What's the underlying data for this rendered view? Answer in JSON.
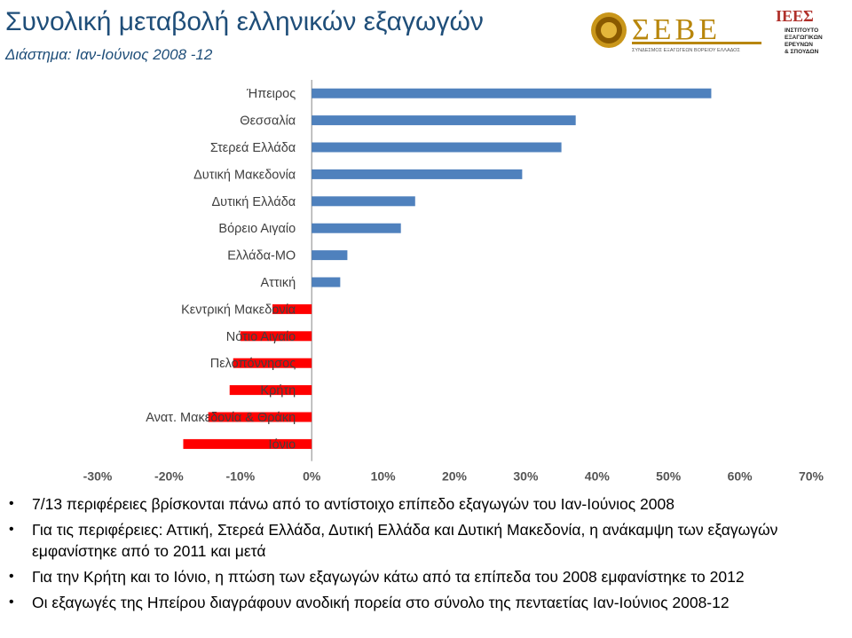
{
  "header": {
    "title": "Συνολική μεταβολή ελληνικών εξαγωγών",
    "subtitle": "Διάστημα: Ιαν-Ιούνιος 2008 -12"
  },
  "logos": {
    "seve": {
      "name": "ΣΕΒΕ",
      "tagline": "ΣΥΝΔΕΣΜΟΣ ΕΞΑΓΩΓΕΩΝ ΒΟΡΕΙΟΥ ΕΛΛΑΔΟΣ",
      "icon": "coin-emblem-icon"
    },
    "iee": {
      "mark": "ΙΕΕΣ",
      "lines": [
        "ΙΝΣΤΙΤΟΥΤΟ",
        "ΕΞΑΓΩΓΙΚΩΝ",
        "ΕΡΕΥΝΩΝ",
        "& ΣΠΟΥΔΩΝ"
      ]
    }
  },
  "colors": {
    "positive_bar": "#4f81bd",
    "negative_bar": "#ff0000",
    "title": "#1f4e79",
    "label": "#404040"
  },
  "chart_data": {
    "type": "bar",
    "orientation": "horizontal",
    "categories": [
      "Ήπειρος",
      "Θεσσαλία",
      "Στερεά Ελλάδα",
      "Δυτική Μακεδονία",
      "Δυτική Ελλάδα",
      "Βόρειο Αιγαίο",
      "Ελλάδα-ΜΟ",
      "Αττική",
      "Κεντρική Μακεδονία",
      "Νότιο Αιγαίο",
      "Πελοπόννησος",
      "Κρήτη",
      "Ανατ. Μακεδονία & Θράκη",
      "Ιόνιο"
    ],
    "values": [
      56,
      37,
      35,
      29.5,
      14.5,
      12.5,
      5,
      4,
      -5.5,
      -10,
      -11,
      -11.5,
      -14.5,
      -18
    ],
    "xlim": [
      -30,
      70
    ],
    "xticks": [
      "-30%",
      "-20%",
      "-10%",
      "0%",
      "10%",
      "20%",
      "30%",
      "40%",
      "50%",
      "60%",
      "70%"
    ],
    "xtick_values": [
      -30,
      -20,
      -10,
      0,
      10,
      20,
      30,
      40,
      50,
      60,
      70
    ],
    "grid": false,
    "legend": "none"
  },
  "bullets": [
    "7/13 περιφέρειες βρίσκονται πάνω από το αντίστοιχο επίπεδο εξαγωγών του Ιαν-Ιούνιος 2008",
    "Για τις περιφέρειες: Αττική, Στερεά Ελλάδα, Δυτική Ελλάδα και Δυτική Μακεδονία, η ανάκαμψη των εξαγωγών εμφανίστηκε από το 2011 και μετά",
    "Για την Κρήτη και το Ιόνιο, η πτώση των εξαγωγών κάτω από τα επίπεδα του 2008 εμφανίστηκε το 2012",
    "Οι εξαγωγές της Ηπείρου διαγράφουν ανοδική πορεία στο σύνολο της πενταετίας Ιαν-Ιούνιος 2008-12"
  ]
}
